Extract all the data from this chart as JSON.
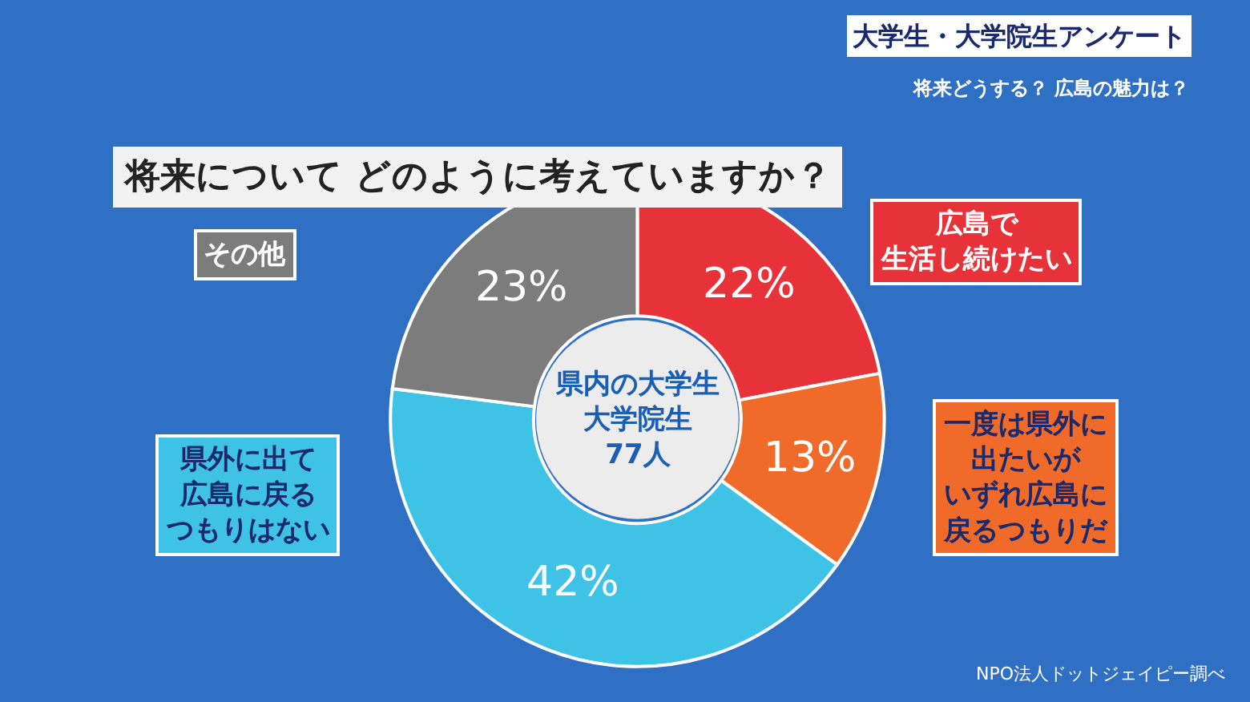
{
  "chart_data": {
    "type": "donut",
    "title": "将来について どのように考えていますか？",
    "subtitle": "将来どうする？ 広島の魅力は？",
    "categories": [
      "広島で生活し続けたい",
      "一度は県外に出たいがいずれ広島に戻るつもりだ",
      "県外に出て広島に戻るつもりはない",
      "その他"
    ],
    "values": [
      22,
      13,
      42,
      23
    ],
    "colors": [
      "#e8323a",
      "#f06a2a",
      "#3ec3e6",
      "#7c7c7c"
    ],
    "value_labels": [
      "22%",
      "13%",
      "42%",
      "23%"
    ],
    "annotations": [
      "大学生・大学院生アンケート",
      "県内の大学生大学院生77人",
      "NPO法人ドットジェイピー調べ"
    ],
    "legend": false
  }
}
